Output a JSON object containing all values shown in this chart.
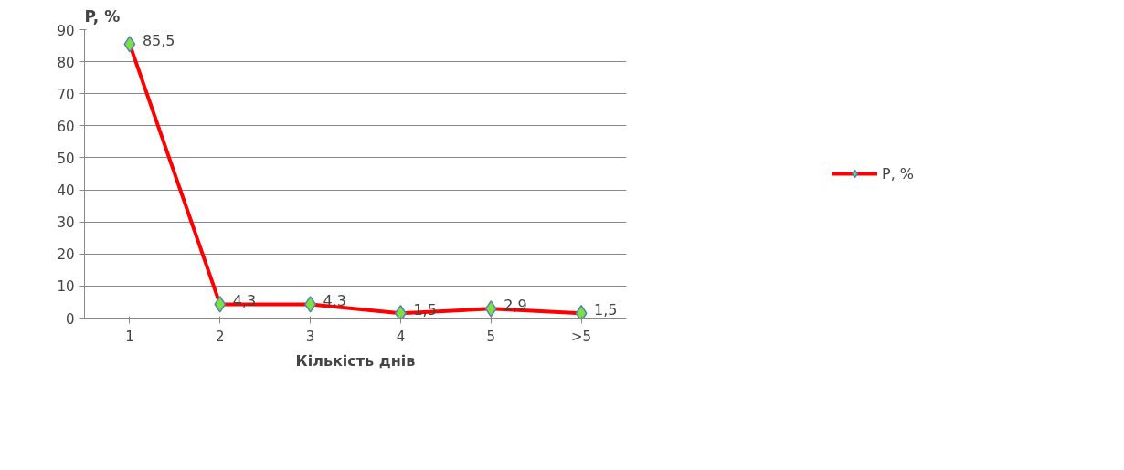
{
  "chart_data": {
    "type": "line",
    "xlabel": "Кількість днів",
    "ylabel": "P, %",
    "categories": [
      "1",
      "2",
      "3",
      "4",
      "5",
      ">5"
    ],
    "series": [
      {
        "name": "P, %",
        "color": "#ff0000",
        "values": [
          85.5,
          4.3,
          4.3,
          1.5,
          2.9,
          1.5
        ],
        "value_labels": [
          "85,5",
          "4,3",
          "4,3",
          "1,5",
          "2,9",
          "1,5"
        ]
      }
    ],
    "ylim": [
      0,
      90
    ],
    "yticks": [
      0,
      10,
      20,
      30,
      40,
      50,
      60,
      70,
      80,
      90
    ],
    "grid": "y",
    "legend": "right",
    "marker": "diamond",
    "line_style": "solid"
  }
}
